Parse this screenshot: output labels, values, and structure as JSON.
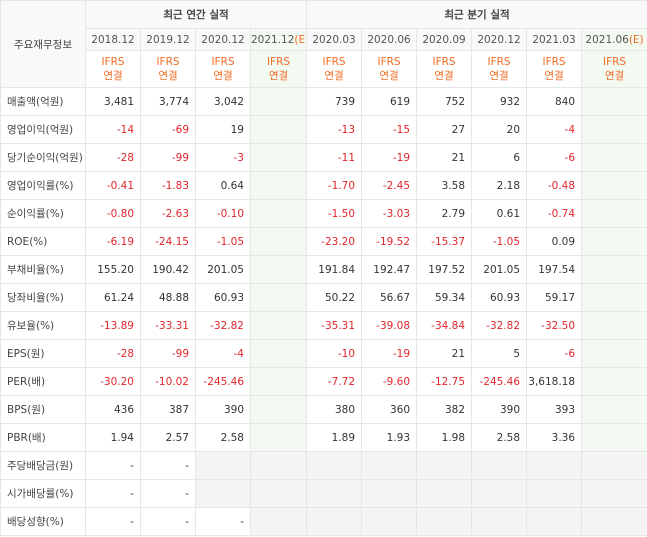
{
  "header": {
    "row_label": "주요재무정보",
    "annual_title": "최근 연간 실적",
    "quarter_title": "최근 분기 실적"
  },
  "annual_columns": [
    {
      "date": "2018.12",
      "basis": "IFRS\n연결"
    },
    {
      "date": "2019.12",
      "basis": "IFRS\n연결"
    },
    {
      "date": "2020.12",
      "basis": "IFRS\n연결"
    },
    {
      "date": "2021.12",
      "mark": "(E)",
      "basis": "IFRS\n연결"
    }
  ],
  "quarter_columns": [
    {
      "date": "2020.03",
      "basis": "IFRS\n연결"
    },
    {
      "date": "2020.06",
      "basis": "IFRS\n연결"
    },
    {
      "date": "2020.09",
      "basis": "IFRS\n연결"
    },
    {
      "date": "2020.12",
      "basis": "IFRS\n연결"
    },
    {
      "date": "2021.03",
      "basis": "IFRS\n연결"
    },
    {
      "date": "2021.06",
      "mark": "(E)",
      "basis": "IFRS\n연결"
    }
  ],
  "row_groups": [
    [
      {
        "label": "매출액(억원)",
        "cells": [
          "3,481",
          "3,774",
          "3,042",
          null,
          "739",
          "619",
          "752",
          "932",
          "840",
          null
        ]
      },
      {
        "label": "영업이익(억원)",
        "cells": [
          "-14",
          "-69",
          "19",
          null,
          "-13",
          "-15",
          "27",
          "20",
          "-4",
          null
        ]
      },
      {
        "label": "당기순이익(억원)",
        "cells": [
          "-28",
          "-99",
          "-3",
          null,
          "-11",
          "-19",
          "21",
          "6",
          "-6",
          null
        ]
      }
    ],
    [
      {
        "label": "영업이익률(%)",
        "cells": [
          "-0.41",
          "-1.83",
          "0.64",
          null,
          "-1.70",
          "-2.45",
          "3.58",
          "2.18",
          "-0.48",
          null
        ]
      },
      {
        "label": "순이익률(%)",
        "cells": [
          "-0.80",
          "-2.63",
          "-0.10",
          null,
          "-1.50",
          "-3.03",
          "2.79",
          "0.61",
          "-0.74",
          null
        ]
      },
      {
        "label": "ROE(%)",
        "cells": [
          "-6.19",
          "-24.15",
          "-1.05",
          null,
          "-23.20",
          "-19.52",
          "-15.37",
          "-1.05",
          "0.09",
          null
        ]
      }
    ],
    [
      {
        "label": "부채비율(%)",
        "cells": [
          "155.20",
          "190.42",
          "201.05",
          null,
          "191.84",
          "192.47",
          "197.52",
          "201.05",
          "197.54",
          null
        ]
      },
      {
        "label": "당좌비율(%)",
        "cells": [
          "61.24",
          "48.88",
          "60.93",
          null,
          "50.22",
          "56.67",
          "59.34",
          "60.93",
          "59.17",
          null
        ]
      },
      {
        "label": "유보율(%)",
        "cells": [
          "-13.89",
          "-33.31",
          "-32.82",
          null,
          "-35.31",
          "-39.08",
          "-34.84",
          "-32.82",
          "-32.50",
          null
        ]
      }
    ],
    [
      {
        "label": "EPS(원)",
        "cells": [
          "-28",
          "-99",
          "-4",
          null,
          "-10",
          "-19",
          "21",
          "5",
          "-6",
          null
        ]
      },
      {
        "label": "PER(배)",
        "cells": [
          "-30.20",
          "-10.02",
          "-245.46",
          null,
          "-7.72",
          "-9.60",
          "-12.75",
          "-245.46",
          "3,618.18",
          null
        ]
      },
      {
        "label": "BPS(원)",
        "cells": [
          "436",
          "387",
          "390",
          null,
          "380",
          "360",
          "382",
          "390",
          "393",
          null
        ]
      },
      {
        "label": "PBR(배)",
        "cells": [
          "1.94",
          "2.57",
          "2.58",
          null,
          "1.89",
          "1.93",
          "1.98",
          "2.58",
          "3.36",
          null
        ]
      }
    ],
    [
      {
        "label": "주당배당금(원)",
        "cells": [
          "-",
          "-",
          null,
          null,
          null,
          null,
          null,
          null,
          null,
          null
        ]
      },
      {
        "label": "시가배당률(%)",
        "cells": [
          "-",
          "-",
          null,
          null,
          null,
          null,
          null,
          null,
          null,
          null
        ]
      },
      {
        "label": "배당성향(%)",
        "cells": [
          "-",
          "-",
          "-",
          null,
          null,
          null,
          null,
          null,
          null,
          null
        ]
      }
    ]
  ]
}
